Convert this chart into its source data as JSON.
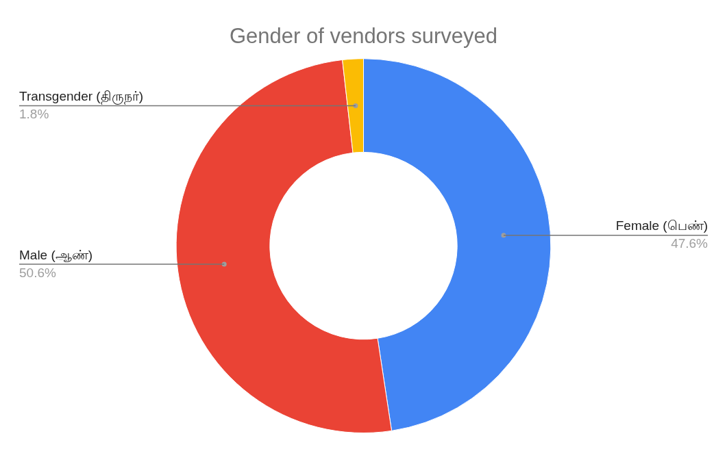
{
  "chart_data": {
    "type": "donut",
    "title": "Gender of vendors surveyed",
    "categories": [
      "Female (பெண்)",
      "Male (ஆண்)",
      "Transgender (திருநர்)"
    ],
    "values": [
      47.6,
      50.6,
      1.8
    ],
    "colors": [
      "#4285f4",
      "#ea4335",
      "#fbbc04"
    ],
    "value_labels": [
      "47.6%",
      "50.6%",
      "1.8%"
    ],
    "legend": false
  }
}
